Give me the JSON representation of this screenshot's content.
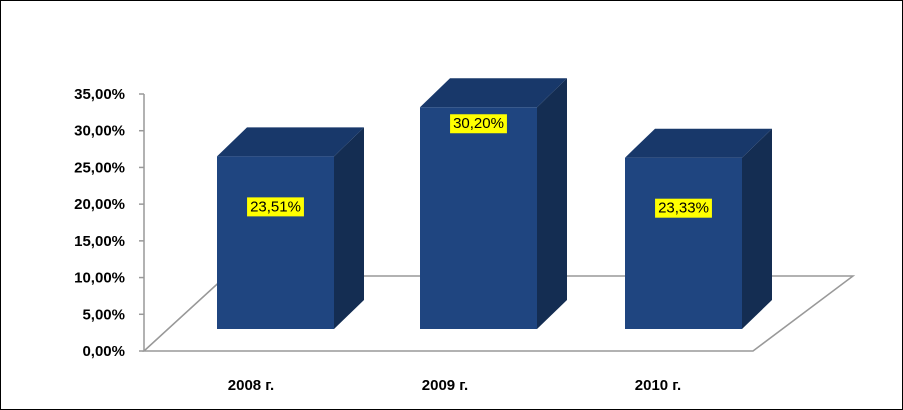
{
  "chart_data": {
    "type": "bar",
    "style": "3d-column",
    "title": "",
    "xlabel": "",
    "ylabel": "",
    "categories": [
      "2008 г.",
      "2009 г.",
      "2010 г."
    ],
    "series": [
      {
        "values": [
          23.51,
          30.2,
          23.33
        ],
        "labels": [
          "23,51%",
          "30,20%",
          "23,33%"
        ]
      }
    ],
    "ylim": [
      0,
      35
    ],
    "yticks": [
      "0,00%",
      "5,00%",
      "10,00%",
      "15,00%",
      "20,00%",
      "25,00%",
      "30,00%",
      "35,00%"
    ],
    "grid": false,
    "legend": "none",
    "colors": {
      "bar_front": "#1f4580",
      "bar_side": "#142d52",
      "bar_top": "#18386a",
      "label_bg": "#ffff00",
      "floor_stroke": "#999999",
      "axis": "#999999"
    }
  }
}
